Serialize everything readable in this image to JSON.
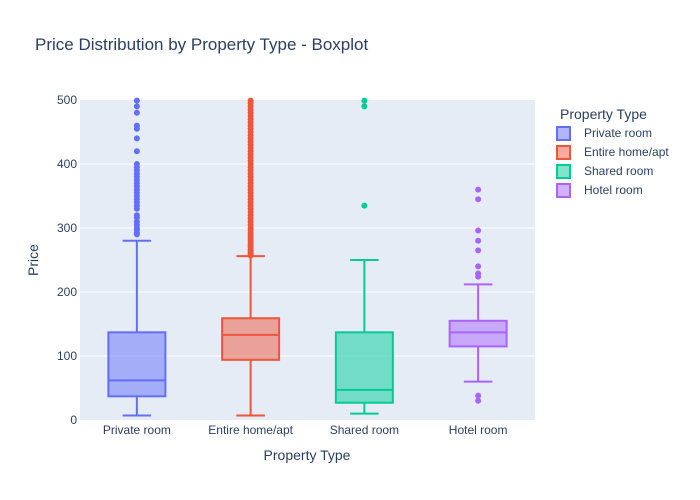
{
  "chart_data": {
    "type": "box",
    "title": "Price Distribution by Property Type - Boxplot",
    "xlabel": "Property Type",
    "ylabel": "Price",
    "ylim": [
      0,
      500
    ],
    "yticks": [
      0,
      100,
      200,
      300,
      400,
      500
    ],
    "grid": true,
    "legend": {
      "title": "Property Type",
      "position": "right"
    },
    "categories": [
      "Private room",
      "Entire home/apt",
      "Shared room",
      "Hotel room"
    ],
    "series": [
      {
        "name": "Private room",
        "color": "#636efa",
        "min": 7,
        "q1": 37,
        "median": 62,
        "q3": 137,
        "max": 280,
        "outliers": [
          290,
          293,
          297,
          300,
          305,
          310,
          316,
          320,
          330,
          335,
          340,
          345,
          350,
          355,
          360,
          365,
          370,
          375,
          380,
          385,
          390,
          395,
          400,
          420,
          440,
          455,
          460,
          480,
          490,
          499
        ]
      },
      {
        "name": "Entire home/apt",
        "color": "#ef553b",
        "min": 7,
        "q1": 94,
        "median": 133,
        "q3": 159,
        "max": 256,
        "outliers": [
          257,
          260,
          263,
          266,
          270,
          273,
          276,
          280,
          284,
          288,
          292,
          296,
          300,
          305,
          310,
          315,
          320,
          325,
          330,
          335,
          340,
          345,
          350,
          355,
          360,
          365,
          370,
          375,
          380,
          385,
          390,
          395,
          400,
          405,
          410,
          415,
          420,
          425,
          430,
          435,
          440,
          445,
          450,
          455,
          460,
          465,
          470,
          475,
          480,
          485,
          490,
          495,
          499
        ]
      },
      {
        "name": "Shared room",
        "color": "#00cc96",
        "min": 10,
        "q1": 27,
        "median": 47,
        "q3": 137,
        "max": 250,
        "outliers": [
          335,
          490,
          499
        ]
      },
      {
        "name": "Hotel room",
        "color": "#ab63fa",
        "min": 60,
        "q1": 115,
        "median": 137,
        "q3": 155,
        "max": 212,
        "outliers": [
          30,
          38,
          224,
          229,
          240,
          265,
          280,
          296,
          345,
          360
        ]
      }
    ]
  }
}
